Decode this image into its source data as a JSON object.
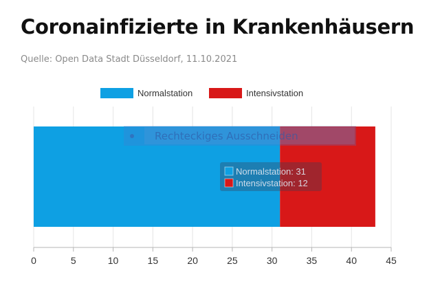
{
  "header": {
    "title": "Coronainfizierte in Krankenhäusern",
    "source": "Quelle: Open Data Stadt Düsseldorf, 11.10.2021"
  },
  "overlay": {
    "label": "Rechteckiges Ausschneiden"
  },
  "chart_data": {
    "type": "bar",
    "orientation": "horizontal",
    "stacked": true,
    "categories": [
      ""
    ],
    "series": [
      {
        "name": "Normalstation",
        "values": [
          31
        ],
        "color": "#0ea0e3"
      },
      {
        "name": "Intensivstation",
        "values": [
          12
        ],
        "color": "#d81818"
      }
    ],
    "xlim": [
      0,
      45
    ],
    "xticks": [
      0,
      5,
      10,
      15,
      20,
      25,
      30,
      35,
      40,
      45
    ],
    "grid": true,
    "legend": "top-center",
    "tooltip": {
      "lines": [
        "Normalstation: 31",
        "Intensivstation: 12"
      ]
    }
  }
}
